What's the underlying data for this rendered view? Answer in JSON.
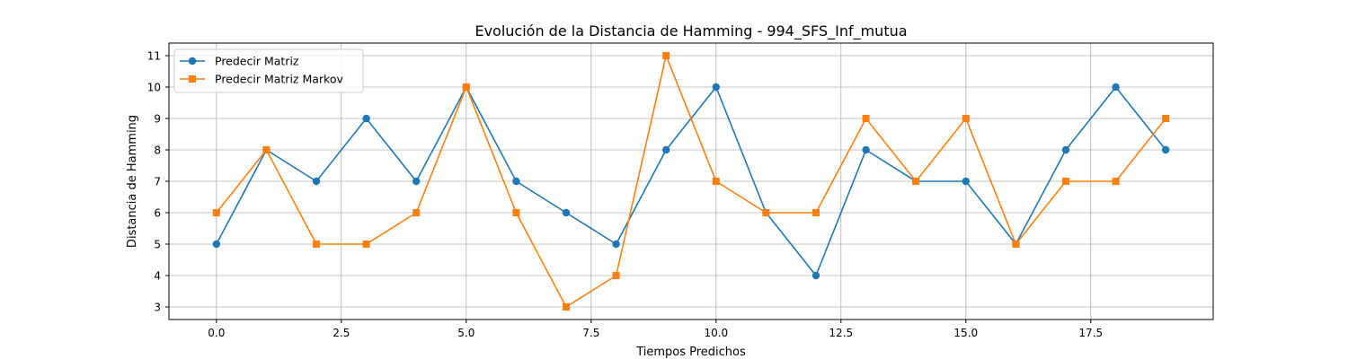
{
  "chart_data": {
    "type": "line",
    "title": "Evolución de la Distancia de Hamming - 994_SFS_Inf_mutua",
    "xlabel": "Tiempos Predichos",
    "ylabel": "Distancia de Hamming",
    "xlim": [
      -0.95,
      19.95
    ],
    "ylim": [
      2.6,
      11.4
    ],
    "xticks": [
      0.0,
      2.5,
      5.0,
      7.5,
      10.0,
      12.5,
      15.0,
      17.5
    ],
    "xtick_labels": [
      "0.0",
      "2.5",
      "5.0",
      "7.5",
      "10.0",
      "12.5",
      "15.0",
      "17.5"
    ],
    "yticks": [
      3,
      4,
      5,
      6,
      7,
      8,
      9,
      10,
      11
    ],
    "ytick_labels": [
      "3",
      "4",
      "5",
      "6",
      "7",
      "8",
      "9",
      "10",
      "11"
    ],
    "grid": true,
    "legend_position": "top-left",
    "x": [
      0,
      1,
      2,
      3,
      4,
      5,
      6,
      7,
      8,
      9,
      10,
      11,
      12,
      13,
      14,
      15,
      16,
      17,
      18,
      19
    ],
    "series": [
      {
        "name": "Predecir Matriz",
        "color": "#1f77b4",
        "marker": "circle",
        "values": [
          5,
          8,
          7,
          9,
          7,
          10,
          7,
          6,
          5,
          8,
          10,
          6,
          4,
          8,
          7,
          7,
          5,
          8,
          10,
          8
        ]
      },
      {
        "name": "Predecir Matriz Markov",
        "color": "#ff7f0e",
        "marker": "square",
        "values": [
          6,
          8,
          5,
          5,
          6,
          10,
          6,
          3,
          4,
          11,
          7,
          6,
          6,
          9,
          7,
          9,
          5,
          7,
          7,
          9
        ]
      }
    ]
  }
}
